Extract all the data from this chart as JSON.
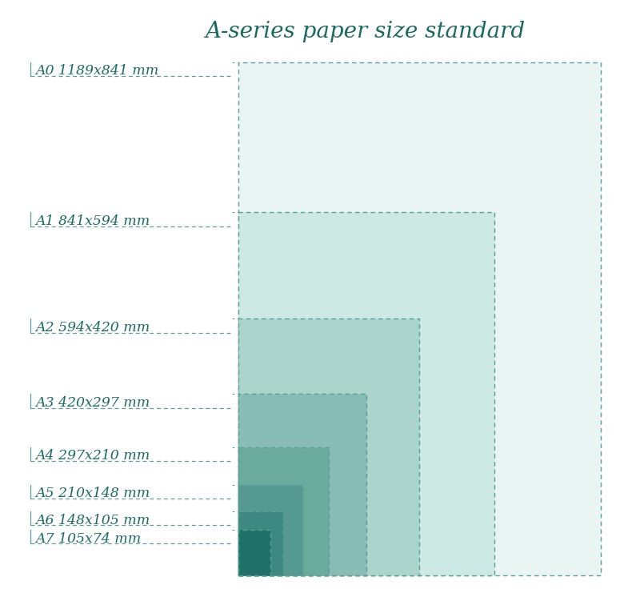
{
  "title": "A-series paper size standard",
  "title_color": "#1a6b5e",
  "title_fontsize": 20,
  "background_color": "#ffffff",
  "labels": [
    "A0 1189x841 mm",
    "A1 841x594 mm",
    "A2 594x420 mm",
    "A3 420x297 mm",
    "A4 297x210 mm",
    "A5 210x148 mm",
    "A6 148x105 mm",
    "A7 105x74 mm"
  ],
  "paper_w": [
    841,
    594,
    420,
    297,
    210,
    148,
    105,
    74
  ],
  "paper_h": [
    1189,
    841,
    594,
    420,
    297,
    210,
    148,
    105
  ],
  "fill_colors": [
    "#e8f5f3",
    "#cce9e4",
    "#aad4cc",
    "#87bdb5",
    "#6aab9e",
    "#559990",
    "#3d8880",
    "#1e7068"
  ],
  "edge_color": "#5a9e96",
  "label_color": "#1a6b5e",
  "label_fontsize": 12.5
}
